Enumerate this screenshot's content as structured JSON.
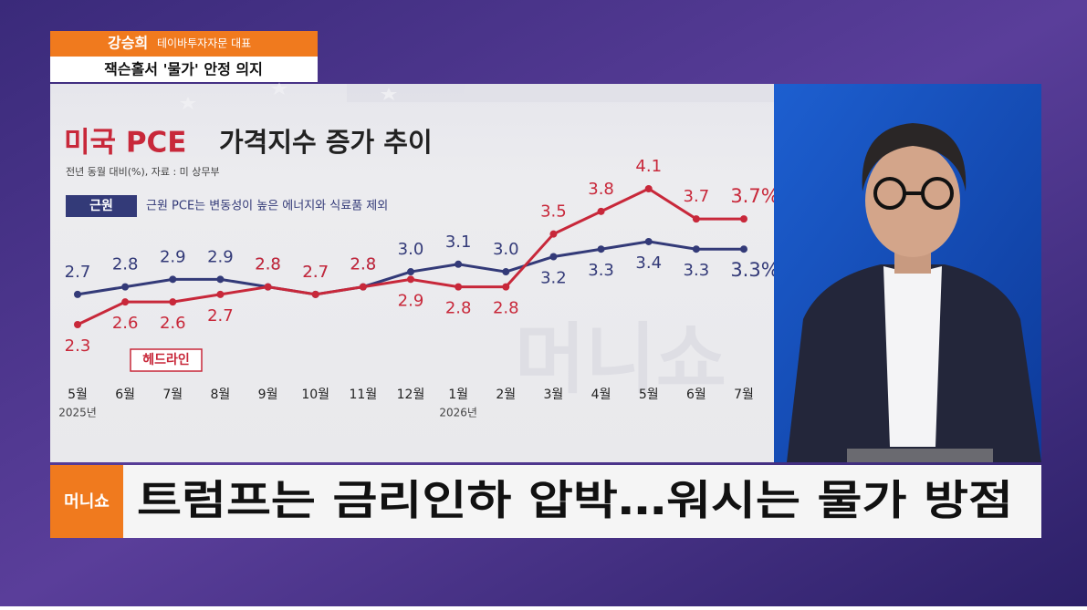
{
  "speaker": {
    "name": "강승희",
    "role": "테이바투자자문 대표",
    "topic": "잭슨홀서 '물가' 안정 의지"
  },
  "chart_data": {
    "type": "line",
    "title_lead": "미국 PCE",
    "title": "가격지수 증가 추이",
    "subtitle": "전년 동월 대비(%), 자료 : 미 상무부",
    "note": "근원 PCE는 변동성이 높은 에너지와 식료품 제외",
    "categories": [
      "5월",
      "6월",
      "7월",
      "8월",
      "9월",
      "10월",
      "11월",
      "12월",
      "1월",
      "2월",
      "3월",
      "4월",
      "5월",
      "6월",
      "7월"
    ],
    "x_sublabels": [
      "2025년",
      null,
      null,
      null,
      null,
      null,
      null,
      null,
      "2026년",
      null,
      null,
      null,
      null,
      null,
      null
    ],
    "series": [
      {
        "name": "근원",
        "color": "#333a78",
        "values": [
          2.7,
          2.8,
          2.9,
          2.9,
          2.8,
          2.7,
          2.8,
          3.0,
          3.1,
          3.0,
          3.2,
          3.3,
          3.4,
          3.3,
          3.3
        ],
        "value_labels": [
          "2.7",
          "2.8",
          "2.9",
          "2.9",
          "2.8",
          "2.7",
          "2.8",
          "3.0",
          "3.1",
          "3.0",
          "3.2",
          "3.3",
          "3.4",
          "3.3",
          "3.3%"
        ]
      },
      {
        "name": "헤드라인",
        "color": "#c8283a",
        "values": [
          2.3,
          2.6,
          2.6,
          2.7,
          2.8,
          2.7,
          2.8,
          2.9,
          2.8,
          2.8,
          3.5,
          3.8,
          4.1,
          3.7,
          3.7
        ],
        "value_labels": [
          "2.3",
          "2.6",
          "2.6",
          "2.7",
          "2.8",
          "2.7",
          "2.8",
          "2.9",
          "2.8",
          "2.8",
          "3.5",
          "3.8",
          "4.1",
          "3.7",
          "3.7%"
        ]
      }
    ]
  },
  "ticker": {
    "logo": "머니쇼",
    "headline": "트럼프는 금리인하 압박…워시는 물가 방점"
  }
}
